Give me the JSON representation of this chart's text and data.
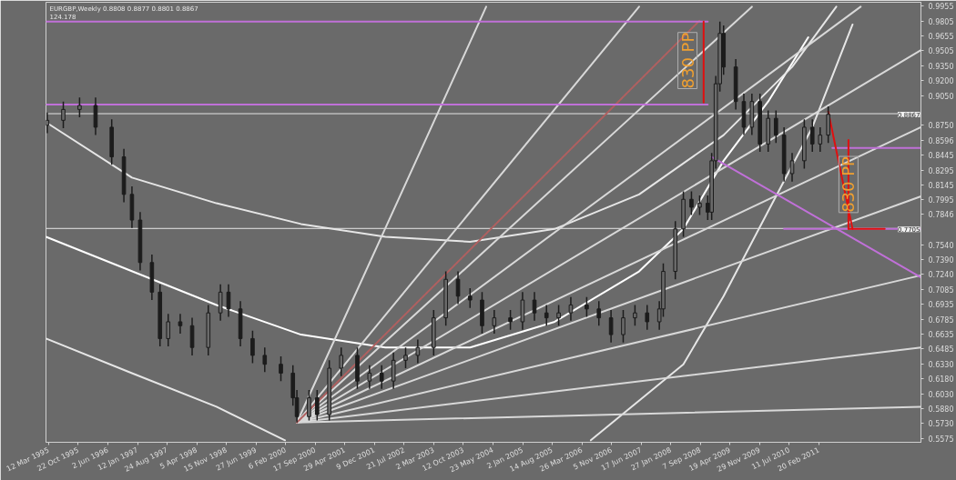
{
  "chart_data": {
    "type": "candlestick",
    "title": "EURGBP,Weekly  0.8808 0.8877 0.8801 0.8867",
    "subtitle": "124.178",
    "color": "#1c1c1c",
    "x": [
      "1995-03",
      "1995-07",
      "1995-11",
      "1996-03",
      "1996-07",
      "1996-10",
      "1996-12",
      "1997-02",
      "1997-05",
      "1997-07",
      "1997-09",
      "1997-12",
      "1998-03",
      "1998-07",
      "1998-10",
      "1998-12",
      "1999-03",
      "1999-06",
      "1999-09",
      "2000-01",
      "2000-04",
      "2000-05",
      "2000-08",
      "2000-10",
      "2001-01",
      "2001-04",
      "2001-08",
      "2001-11",
      "2002-02",
      "2002-05",
      "2002-08",
      "2002-11",
      "2003-03",
      "2003-06",
      "2003-09",
      "2003-12",
      "2004-03",
      "2004-06",
      "2004-10",
      "2005-01",
      "2005-04",
      "2005-07",
      "2005-10",
      "2006-01",
      "2006-05",
      "2006-08",
      "2006-11",
      "2007-02",
      "2007-05",
      "2007-08",
      "2007-11",
      "2007-12",
      "2008-03",
      "2008-05",
      "2008-07",
      "2008-09",
      "2008-11",
      "2008-12",
      "2009-01",
      "2009-02",
      "2009-03",
      "2009-06",
      "2009-08",
      "2009-10",
      "2009-12",
      "2010-02",
      "2010-04",
      "2010-06",
      "2010-08",
      "2010-11",
      "2011-01",
      "2011-03",
      "2011-05"
    ],
    "ohlc": [
      [
        0.875,
        0.888,
        0.867,
        0.88
      ],
      [
        0.88,
        0.899,
        0.872,
        0.891
      ],
      [
        0.891,
        0.903,
        0.883,
        0.895
      ],
      [
        0.895,
        0.903,
        0.865,
        0.873
      ],
      [
        0.873,
        0.881,
        0.835,
        0.843
      ],
      [
        0.843,
        0.851,
        0.797,
        0.805
      ],
      [
        0.805,
        0.813,
        0.771,
        0.779
      ],
      [
        0.779,
        0.787,
        0.728,
        0.736
      ],
      [
        0.736,
        0.744,
        0.698,
        0.706
      ],
      [
        0.706,
        0.714,
        0.651,
        0.659
      ],
      [
        0.659,
        0.684,
        0.651,
        0.676
      ],
      [
        0.676,
        0.684,
        0.664,
        0.672
      ],
      [
        0.672,
        0.68,
        0.642,
        0.65
      ],
      [
        0.65,
        0.693,
        0.642,
        0.685
      ],
      [
        0.685,
        0.714,
        0.677,
        0.706
      ],
      [
        0.706,
        0.714,
        0.681,
        0.689
      ],
      [
        0.689,
        0.697,
        0.651,
        0.659
      ],
      [
        0.659,
        0.667,
        0.634,
        0.642
      ],
      [
        0.642,
        0.65,
        0.625,
        0.633
      ],
      [
        0.633,
        0.641,
        0.616,
        0.624
      ],
      [
        0.624,
        0.632,
        0.591,
        0.599
      ],
      [
        0.599,
        0.607,
        0.574,
        0.58
      ],
      [
        0.58,
        0.607,
        0.576,
        0.599
      ],
      [
        0.599,
        0.607,
        0.576,
        0.582
      ],
      [
        0.582,
        0.637,
        0.576,
        0.629
      ],
      [
        0.629,
        0.65,
        0.621,
        0.642
      ],
      [
        0.642,
        0.65,
        0.608,
        0.616
      ],
      [
        0.616,
        0.632,
        0.608,
        0.624
      ],
      [
        0.624,
        0.632,
        0.608,
        0.616
      ],
      [
        0.616,
        0.645,
        0.608,
        0.637
      ],
      [
        0.637,
        0.65,
        0.629,
        0.642
      ],
      [
        0.642,
        0.658,
        0.634,
        0.65
      ],
      [
        0.65,
        0.688,
        0.642,
        0.68
      ],
      [
        0.68,
        0.727,
        0.672,
        0.719
      ],
      [
        0.719,
        0.727,
        0.694,
        0.702
      ],
      [
        0.702,
        0.71,
        0.69,
        0.698
      ],
      [
        0.698,
        0.706,
        0.664,
        0.672
      ],
      [
        0.672,
        0.688,
        0.664,
        0.68
      ],
      [
        0.68,
        0.688,
        0.668,
        0.676
      ],
      [
        0.676,
        0.706,
        0.668,
        0.698
      ],
      [
        0.698,
        0.706,
        0.677,
        0.685
      ],
      [
        0.685,
        0.693,
        0.672,
        0.68
      ],
      [
        0.68,
        0.693,
        0.672,
        0.685
      ],
      [
        0.685,
        0.701,
        0.677,
        0.693
      ],
      [
        0.693,
        0.701,
        0.681,
        0.689
      ],
      [
        0.689,
        0.697,
        0.672,
        0.68
      ],
      [
        0.68,
        0.688,
        0.655,
        0.663
      ],
      [
        0.663,
        0.688,
        0.655,
        0.68
      ],
      [
        0.68,
        0.693,
        0.672,
        0.685
      ],
      [
        0.685,
        0.693,
        0.668,
        0.676
      ],
      [
        0.676,
        0.697,
        0.668,
        0.689
      ],
      [
        0.689,
        0.735,
        0.681,
        0.727
      ],
      [
        0.727,
        0.778,
        0.719,
        0.77
      ],
      [
        0.77,
        0.808,
        0.762,
        0.8
      ],
      [
        0.8,
        0.808,
        0.784,
        0.792
      ],
      [
        0.792,
        0.804,
        0.784,
        0.796
      ],
      [
        0.796,
        0.804,
        0.779,
        0.787
      ],
      [
        0.787,
        0.847,
        0.779,
        0.839
      ],
      [
        0.839,
        0.925,
        0.831,
        0.917
      ],
      [
        0.917,
        0.98,
        0.909,
        0.968
      ],
      [
        0.968,
        0.976,
        0.926,
        0.934
      ],
      [
        0.934,
        0.942,
        0.891,
        0.899
      ],
      [
        0.899,
        0.907,
        0.865,
        0.873
      ],
      [
        0.873,
        0.907,
        0.865,
        0.899
      ],
      [
        0.899,
        0.907,
        0.848,
        0.856
      ],
      [
        0.856,
        0.89,
        0.848,
        0.882
      ],
      [
        0.882,
        0.89,
        0.857,
        0.865
      ],
      [
        0.865,
        0.873,
        0.818,
        0.826
      ],
      [
        0.826,
        0.847,
        0.818,
        0.839
      ],
      [
        0.839,
        0.881,
        0.831,
        0.873
      ],
      [
        0.873,
        0.881,
        0.848,
        0.856
      ],
      [
        0.856,
        0.873,
        0.848,
        0.865
      ],
      [
        0.865,
        0.894,
        0.857,
        0.886
      ]
    ],
    "series": [
      {
        "type": "line",
        "color": "#ffffff",
        "x": [
          "1995-02-20",
          "1998-09",
          "2000-06",
          "2002-03",
          "2003-12",
          "2005-09",
          "2007-06",
          "2008-05",
          "2009-03",
          "2010-02",
          "2010-12"
        ],
        "values": [
          0.762,
          0.693,
          0.663,
          0.65,
          0.65,
          0.676,
          0.727,
          0.77,
          0.839,
          0.899,
          0.964
        ]
      },
      {
        "type": "line",
        "color": "#e6e6e6",
        "x": [
          "1995-02-20",
          "1996-12",
          "1998-09",
          "2000-06",
          "2002-03",
          "2003-12",
          "2005-09",
          "2007-06",
          "2009-03",
          "2010-08",
          "2011-07"
        ],
        "values": [
          0.878,
          0.822,
          0.796,
          0.775,
          0.762,
          0.757,
          0.77,
          0.805,
          0.865,
          0.934,
          0.995
        ]
      },
      {
        "type": "line",
        "color": "#e6e6e6",
        "x": [
          "2006-06",
          "2008-05",
          "2009-03",
          "2010-02",
          "2011-01",
          "2011-11"
        ],
        "values": [
          0.556,
          0.633,
          0.702,
          0.788,
          0.873,
          0.977
        ]
      },
      {
        "type": "line",
        "color": "#e6e6e6",
        "x": [
          "1995-02-20",
          "1996-12",
          "1998-09",
          "2000-02"
        ],
        "values": [
          0.659,
          0.624,
          0.59,
          0.556
        ]
      },
      {
        "type": "line",
        "color": "#d8d8d8",
        "x": [
          "2000-05",
          "2004-04"
        ],
        "values": [
          0.574,
          0.995
        ]
      },
      {
        "type": "line",
        "color": "#d8d8d8",
        "x": [
          "2000-05",
          "2007-06"
        ],
        "values": [
          0.574,
          0.995
        ]
      },
      {
        "type": "line",
        "color": "#d8d8d8",
        "x": [
          "2000-05",
          "2009-10"
        ],
        "values": [
          0.574,
          0.995
        ]
      },
      {
        "type": "line",
        "color": "#d8d8d8",
        "x": [
          "2000-05",
          "2012-01"
        ],
        "values": [
          0.574,
          0.995
        ]
      },
      {
        "type": "line",
        "color": "#d8d8d8",
        "x": [
          "2000-05",
          "2013-04"
        ],
        "values": [
          0.574,
          0.951
        ]
      },
      {
        "type": "line",
        "color": "#d8d8d8",
        "x": [
          "2000-05",
          "2013-04"
        ],
        "values": [
          0.574,
          0.873
        ]
      },
      {
        "type": "line",
        "color": "#d8d8d8",
        "x": [
          "2000-05",
          "2013-04"
        ],
        "values": [
          0.574,
          0.803
        ]
      },
      {
        "type": "line",
        "color": "#d8d8d8",
        "x": [
          "2000-05",
          "2013-04"
        ],
        "values": [
          0.574,
          0.723
        ]
      },
      {
        "type": "line",
        "color": "#d8d8d8",
        "x": [
          "2000-05",
          "2013-04"
        ],
        "values": [
          0.574,
          0.65
        ]
      },
      {
        "type": "line",
        "color": "#d8d8d8",
        "x": [
          "2000-05",
          "2013-04"
        ],
        "values": [
          0.574,
          0.59
        ]
      },
      {
        "type": "line",
        "color": "#b06060",
        "line_style": "dotted",
        "x": [
          "2000-05",
          "2008-09"
        ],
        "values": [
          0.574,
          0.981
        ]
      },
      {
        "type": "line",
        "color": "#c070d8",
        "x": [
          "1995-02-20",
          "2008-11"
        ],
        "values": [
          0.98,
          0.98
        ]
      },
      {
        "type": "line",
        "color": "#c070d8",
        "x": [
          "1995-02-20",
          "2008-11"
        ],
        "values": [
          0.896,
          0.896
        ]
      },
      {
        "type": "line",
        "color": "#c070d8",
        "x": [
          "2011-06",
          "2013-04"
        ],
        "values": [
          0.852,
          0.852
        ]
      },
      {
        "type": "line",
        "color": "#c070d8",
        "x": [
          "2010-06",
          "2013-04"
        ],
        "values": [
          0.77,
          0.77
        ]
      },
      {
        "type": "line",
        "color": "#c070d8",
        "x": [
          "2008-12",
          "2013-04"
        ],
        "values": [
          0.843,
          0.721
        ]
      },
      {
        "type": "line",
        "color": "#e01010",
        "x": [
          "2008-10",
          "2008-10"
        ],
        "values": [
          0.98,
          0.898
        ]
      },
      {
        "type": "line",
        "color": "#e01010",
        "x": [
          "2011-05",
          "2011-11"
        ],
        "values": [
          0.889,
          0.77
        ]
      },
      {
        "type": "line",
        "color": "#e01010",
        "x": [
          "2011-10",
          "2011-10"
        ],
        "values": [
          0.86,
          0.77
        ]
      },
      {
        "type": "line",
        "color": "#e01010",
        "x": [
          "2011-10",
          "2012-07"
        ],
        "values": [
          0.77,
          0.77
        ]
      }
    ],
    "ref_lines": [
      {
        "axis": "y",
        "value": 0.8867,
        "label": "0.8867",
        "color": "#e6e6e6"
      },
      {
        "axis": "y",
        "value": 0.7705,
        "label": "0.7705",
        "color": "#e6e6e6"
      }
    ],
    "annotations": [
      {
        "text": "830 PP",
        "x": "2008-06",
        "y": 0.9405
      },
      {
        "text": "830 PP",
        "x": "2011-10",
        "y": 0.815
      }
    ],
    "xlim": [
      "1995-02-20",
      "2013-04"
    ],
    "xticks": [
      {
        "value": "1995-03-12",
        "label": "12 Mar 1995"
      },
      {
        "value": "1995-10-22",
        "label": "22 Oct 1995"
      },
      {
        "value": "1996-06-02",
        "label": "2 Jun 1996"
      },
      {
        "value": "1997-01-12",
        "label": "12 Jan 1997"
      },
      {
        "value": "1997-08-24",
        "label": "24 Aug 1997"
      },
      {
        "value": "1998-04-05",
        "label": "5 Apr 1998"
      },
      {
        "value": "1998-11-15",
        "label": "15 Nov 1998"
      },
      {
        "value": "1999-06-27",
        "label": "27 Jun 1999"
      },
      {
        "value": "2000-02-06",
        "label": "6 Feb 2000"
      },
      {
        "value": "2000-09-17",
        "label": "17 Sep 2000"
      },
      {
        "value": "2001-04-29",
        "label": "29 Apr 2001"
      },
      {
        "value": "2001-12-09",
        "label": "9 Dec 2001"
      },
      {
        "value": "2002-07-21",
        "label": "21 Jul 2002"
      },
      {
        "value": "2003-03-02",
        "label": "2 Mar 2003"
      },
      {
        "value": "2003-10-12",
        "label": "12 Oct 2003"
      },
      {
        "value": "2004-05-23",
        "label": "23 May 2004"
      },
      {
        "value": "2005-01-02",
        "label": "2 Jan 2005"
      },
      {
        "value": "2005-08-14",
        "label": "14 Aug 2005"
      },
      {
        "value": "2006-03-26",
        "label": "26 Mar 2006"
      },
      {
        "value": "2006-11-05",
        "label": "5 Nov 2006"
      },
      {
        "value": "2007-06-17",
        "label": "17 Jun 2007"
      },
      {
        "value": "2008-01-27",
        "label": "27 Jan 2008"
      },
      {
        "value": "2008-09-07",
        "label": "7 Sep 2008"
      },
      {
        "value": "2009-04-19",
        "label": "19 Apr 2009"
      },
      {
        "value": "2009-11-29",
        "label": "29 Nov 2009"
      },
      {
        "value": "2010-07-11",
        "label": "11 Jul 2010"
      },
      {
        "value": "2011-02-20",
        "label": "20 Feb 2011"
      }
    ],
    "ylim": [
      0.554,
      0.9995
    ],
    "yticks": [
      0.9955,
      0.9805,
      0.9655,
      0.9505,
      {
        "value": 0.935,
        "label": "0.9350"
      },
      {
        "value": 0.92,
        "label": "0.9200"
      },
      {
        "value": 0.905,
        "label": "0.9050"
      },
      {
        "value": 0.875,
        "label": "0.8750"
      },
      0.8596,
      0.8445,
      0.8295,
      0.8145,
      0.7995,
      0.7846,
      {
        "value": 0.754,
        "label": "0.7540"
      },
      {
        "value": 0.739,
        "label": "0.7390"
      },
      {
        "value": 0.724,
        "label": "0.7240"
      },
      0.7085,
      0.6935,
      0.6785,
      0.6635,
      0.6485,
      {
        "value": 0.633,
        "label": "0.6330"
      },
      {
        "value": 0.618,
        "label": "0.6180"
      },
      {
        "value": 0.603,
        "label": "0.6030"
      },
      {
        "value": 0.588,
        "label": "0.5880"
      },
      {
        "value": 0.573,
        "label": "0.5730"
      },
      0.5575
    ],
    "grid": false
  }
}
